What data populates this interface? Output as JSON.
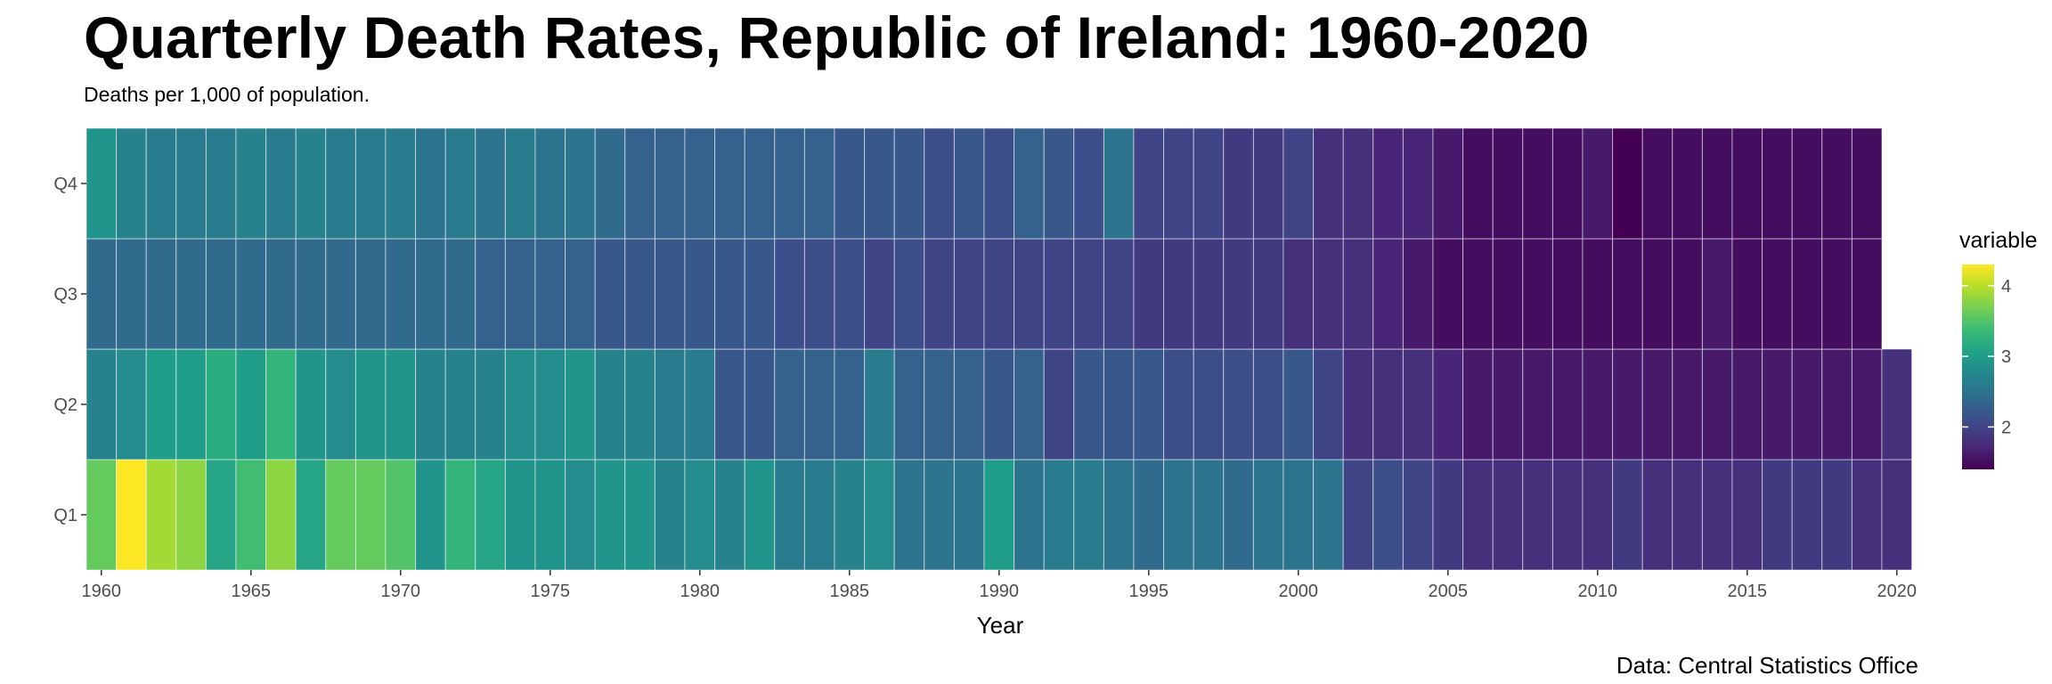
{
  "chart_data": {
    "type": "heatmap",
    "title": "Quarterly Death Rates, Republic of Ireland: 1960-2020",
    "subtitle": "Deaths per 1,000 of population.",
    "caption": "Data: Central Statistics Office",
    "xlabel": "Year",
    "ylabel": "",
    "x_start": 1960,
    "x_end": 2020,
    "x_ticks": [
      1960,
      1965,
      1970,
      1975,
      1980,
      1985,
      1990,
      1995,
      2000,
      2005,
      2010,
      2015,
      2020
    ],
    "quarters": [
      "Q1",
      "Q2",
      "Q3",
      "Q4"
    ],
    "legend": {
      "title": "variable",
      "breaks": [
        2,
        3,
        4
      ],
      "range": [
        1.4,
        4.3
      ],
      "colormap": "viridis"
    },
    "grid": false,
    "series": [
      {
        "name": "Q1",
        "values": [
          3.6,
          4.3,
          3.9,
          3.8,
          3.1,
          3.4,
          3.8,
          3.1,
          3.6,
          3.6,
          3.5,
          2.9,
          3.3,
          3.1,
          2.9,
          2.9,
          2.8,
          2.9,
          2.9,
          2.7,
          2.8,
          2.7,
          2.9,
          2.6,
          2.6,
          2.7,
          2.8,
          2.5,
          2.5,
          2.5,
          3.0,
          2.5,
          2.6,
          2.6,
          2.5,
          2.4,
          2.5,
          2.5,
          2.4,
          2.5,
          2.5,
          2.5,
          2.0,
          2.1,
          2.0,
          1.9,
          1.8,
          1.8,
          1.8,
          1.8,
          1.8,
          1.9,
          1.8,
          1.8,
          1.8,
          1.8,
          1.9,
          1.9,
          1.9,
          1.8,
          1.8
        ]
      },
      {
        "name": "Q2",
        "values": [
          2.7,
          2.8,
          3.0,
          3.0,
          3.2,
          3.0,
          3.3,
          2.9,
          2.8,
          2.9,
          2.9,
          2.7,
          2.7,
          2.7,
          2.8,
          2.8,
          2.9,
          2.7,
          2.7,
          2.6,
          2.6,
          2.2,
          2.2,
          2.3,
          2.3,
          2.3,
          2.6,
          2.3,
          2.3,
          2.3,
          2.2,
          2.3,
          2.0,
          2.2,
          2.2,
          2.2,
          2.1,
          2.1,
          2.1,
          2.1,
          2.2,
          2.0,
          1.8,
          1.8,
          1.8,
          1.7,
          1.6,
          1.6,
          1.6,
          1.6,
          1.6,
          1.6,
          1.6,
          1.6,
          1.6,
          1.6,
          1.6,
          1.6,
          1.6,
          1.6,
          1.8
        ]
      },
      {
        "name": "Q3",
        "values": [
          2.4,
          2.4,
          2.4,
          2.4,
          2.4,
          2.4,
          2.4,
          2.4,
          2.4,
          2.4,
          2.4,
          2.4,
          2.4,
          2.3,
          2.3,
          2.3,
          2.3,
          2.2,
          2.2,
          2.2,
          2.2,
          2.2,
          2.2,
          2.1,
          2.1,
          2.1,
          2.0,
          2.1,
          2.0,
          2.0,
          2.0,
          2.0,
          2.0,
          2.0,
          2.0,
          1.9,
          1.9,
          1.9,
          1.9,
          1.9,
          1.8,
          1.8,
          1.8,
          1.7,
          1.6,
          1.5,
          1.5,
          1.5,
          1.5,
          1.5,
          1.5,
          1.5,
          1.5,
          1.5,
          1.6,
          1.5,
          1.5,
          1.5,
          1.5,
          1.5
        ]
      },
      {
        "name": "Q4",
        "values": [
          2.9,
          2.7,
          2.6,
          2.6,
          2.6,
          2.7,
          2.6,
          2.7,
          2.6,
          2.6,
          2.6,
          2.5,
          2.6,
          2.5,
          2.6,
          2.5,
          2.5,
          2.4,
          2.3,
          2.3,
          2.3,
          2.3,
          2.3,
          2.3,
          2.3,
          2.2,
          2.2,
          2.2,
          2.1,
          2.2,
          2.1,
          2.3,
          2.2,
          2.1,
          2.5,
          2.0,
          2.0,
          2.0,
          1.9,
          1.9,
          2.0,
          1.8,
          1.8,
          1.7,
          1.7,
          1.6,
          1.5,
          1.5,
          1.5,
          1.5,
          1.6,
          1.4,
          1.5,
          1.5,
          1.5,
          1.5,
          1.5,
          1.5,
          1.5,
          1.5
        ]
      }
    ]
  }
}
